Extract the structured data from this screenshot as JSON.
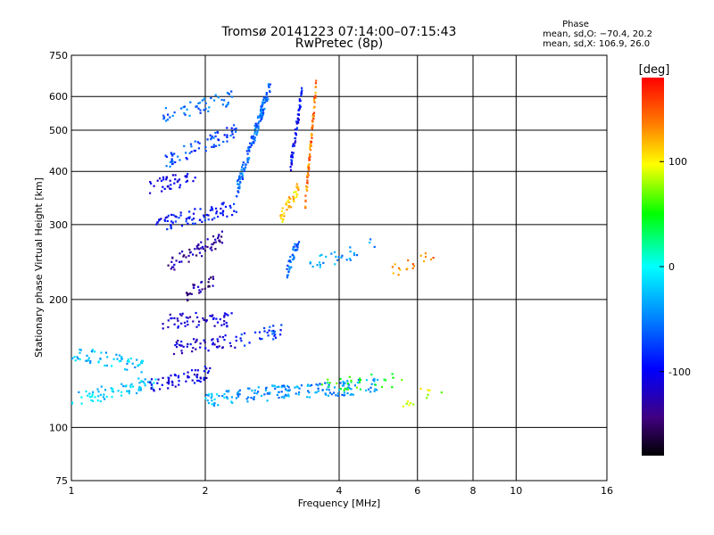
{
  "chart_data": {
    "type": "scatter",
    "title": "Tromsø 20141223 07:14:00–07:15:43",
    "subtitle": "RwPretec (8p)",
    "xlabel": "Frequency [MHz]",
    "ylabel": "Stationary phase Virtual Height [km]",
    "x_scale": "log",
    "y_scale": "log",
    "xlim": [
      1,
      16
    ],
    "ylim": [
      75,
      750
    ],
    "x_ticks": [
      1,
      2,
      4,
      6,
      8,
      10,
      16
    ],
    "y_ticks": [
      75,
      100,
      200,
      300,
      400,
      500,
      600,
      750
    ],
    "x_tick_labels": [
      "1",
      "2",
      "4",
      "6",
      "8",
      "10",
      "16"
    ],
    "y_tick_labels": [
      "75",
      "100",
      "200",
      "300",
      "400",
      "500",
      "600",
      "750"
    ],
    "grid": true,
    "phase_legend": {
      "title": "Phase",
      "line_o": "mean, sd,O: −70.4, 20.2",
      "line_x": "mean, sd,X: 106.9, 26.0"
    },
    "colorbar": {
      "label": "[deg]",
      "range": [
        -180,
        180
      ],
      "ticks": [
        100,
        0,
        -100
      ],
      "tick_labels": [
        "100",
        "0",
        "-100"
      ]
    },
    "traces": [
      {
        "f_start": 1.0,
        "f_end": 1.55,
        "h_start": 116,
        "h_end": 128,
        "phase": -20,
        "n": 70
      },
      {
        "f_start": 1.0,
        "f_end": 1.45,
        "h_start": 150,
        "h_end": 140,
        "phase": -25,
        "n": 60
      },
      {
        "f_start": 1.5,
        "f_end": 2.05,
        "h_start": 125,
        "h_end": 135,
        "phase": -110,
        "n": 60
      },
      {
        "f_start": 1.6,
        "f_end": 2.3,
        "h_start": 178,
        "h_end": 180,
        "phase": -120,
        "n": 55
      },
      {
        "f_start": 1.7,
        "f_end": 2.4,
        "h_start": 155,
        "h_end": 160,
        "phase": -115,
        "n": 50
      },
      {
        "f_start": 1.65,
        "f_end": 2.2,
        "h_start": 240,
        "h_end": 280,
        "phase": -135,
        "n": 60
      },
      {
        "f_start": 1.8,
        "f_end": 2.1,
        "h_start": 205,
        "h_end": 220,
        "phase": -140,
        "n": 30
      },
      {
        "f_start": 1.55,
        "f_end": 2.35,
        "h_start": 300,
        "h_end": 330,
        "phase": -95,
        "n": 80
      },
      {
        "f_start": 1.5,
        "f_end": 1.9,
        "h_start": 370,
        "h_end": 385,
        "phase": -110,
        "n": 40
      },
      {
        "f_start": 1.6,
        "f_end": 2.35,
        "h_start": 420,
        "h_end": 500,
        "phase": -70,
        "n": 70
      },
      {
        "f_start": 1.6,
        "f_end": 2.35,
        "h_start": 540,
        "h_end": 600,
        "phase": -60,
        "n": 50
      },
      {
        "f_start": 2.35,
        "f_end": 2.8,
        "h_start": 360,
        "h_end": 640,
        "phase": -60,
        "n": 150
      },
      {
        "f_start": 2.0,
        "f_end": 2.3,
        "h_start": 115,
        "h_end": 118,
        "phase": -30,
        "n": 30
      },
      {
        "f_start": 2.3,
        "f_end": 3.1,
        "h_start": 118,
        "h_end": 122,
        "phase": -45,
        "n": 60
      },
      {
        "f_start": 3.0,
        "f_end": 4.9,
        "h_start": 120,
        "h_end": 126,
        "phase": -40,
        "n": 90
      },
      {
        "f_start": 3.5,
        "f_end": 5.6,
        "h_start": 125,
        "h_end": 130,
        "phase": 50,
        "n": 30
      },
      {
        "f_start": 2.4,
        "f_end": 3.0,
        "h_start": 160,
        "h_end": 170,
        "phase": -80,
        "n": 30
      },
      {
        "f_start": 3.05,
        "f_end": 3.25,
        "h_start": 230,
        "h_end": 280,
        "phase": -60,
        "n": 40
      },
      {
        "f_start": 3.4,
        "f_end": 4.9,
        "h_start": 240,
        "h_end": 270,
        "phase": -40,
        "n": 30
      },
      {
        "f_start": 2.95,
        "f_end": 3.25,
        "h_start": 310,
        "h_end": 370,
        "phase": 115,
        "n": 40
      },
      {
        "f_start": 3.1,
        "f_end": 3.3,
        "h_start": 400,
        "h_end": 620,
        "phase": -100,
        "n": 60
      },
      {
        "f_start": 3.35,
        "f_end": 3.55,
        "h_start": 330,
        "h_end": 640,
        "phase": 140,
        "n": 80
      },
      {
        "f_start": 5.2,
        "f_end": 6.6,
        "h_start": 230,
        "h_end": 260,
        "phase": 140,
        "n": 18
      },
      {
        "f_start": 5.5,
        "f_end": 6.8,
        "h_start": 115,
        "h_end": 125,
        "phase": 90,
        "n": 12
      }
    ]
  }
}
